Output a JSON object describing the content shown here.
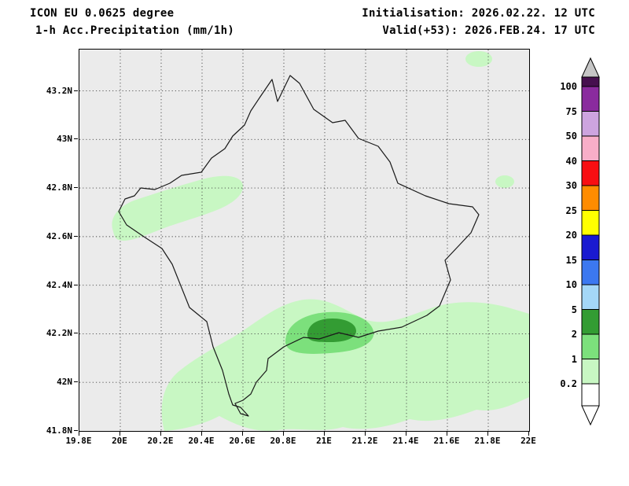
{
  "header": {
    "model": "ICON EU 0.0625 degree",
    "product": "1-h Acc.Precipitation (mm/1h)",
    "initialisation": "Initialisation: 2026.02.22. 12 UTC",
    "valid": "Valid(+53): 2026.FEB.24. 17 UTC"
  },
  "axes": {
    "xlim": [
      19.8,
      22.0
    ],
    "ylim": [
      41.8,
      43.37
    ],
    "x_ticks": [
      {
        "label": "19.8E",
        "value": 19.8
      },
      {
        "label": "20E",
        "value": 20.0
      },
      {
        "label": "20.2E",
        "value": 20.2
      },
      {
        "label": "20.4E",
        "value": 20.4
      },
      {
        "label": "20.6E",
        "value": 20.6
      },
      {
        "label": "20.8E",
        "value": 20.8
      },
      {
        "label": "21E",
        "value": 21.0
      },
      {
        "label": "21.2E",
        "value": 21.2
      },
      {
        "label": "21.4E",
        "value": 21.4
      },
      {
        "label": "21.6E",
        "value": 21.6
      },
      {
        "label": "21.8E",
        "value": 21.8
      },
      {
        "label": "22E",
        "value": 22.0
      }
    ],
    "y_ticks": [
      {
        "label": "43.2N",
        "value": 43.2
      },
      {
        "label": "43N",
        "value": 43.0
      },
      {
        "label": "42.8N",
        "value": 42.8
      },
      {
        "label": "42.6N",
        "value": 42.6
      },
      {
        "label": "42.4N",
        "value": 42.4
      },
      {
        "label": "42.2N",
        "value": 42.2
      },
      {
        "label": "42N",
        "value": 42.0
      },
      {
        "label": "41.8N",
        "value": 41.8
      }
    ]
  },
  "colorbar": {
    "boundary_labels": [
      "100",
      "75",
      "50",
      "40",
      "30",
      "25",
      "20",
      "15",
      "10",
      "5",
      "2",
      "1",
      "0.2"
    ],
    "segment_colors": [
      "#46104f",
      "#8a2b9e",
      "#cda4df",
      "#f8aec8",
      "#f80e12",
      "#ff8c00",
      "#ffff00",
      "#1a1ad0",
      "#3c78f0",
      "#a4d7f7",
      "#339c33",
      "#7ce07c",
      "#c8f7c3",
      "#ffffff"
    ],
    "over_arrow_color": "#c6c6c6",
    "under_arrow_color": "#ffffff"
  },
  "chart_data": {
    "type": "heatmap",
    "title": "1-h Acc.Precipitation (mm/1h)",
    "model": "ICON EU 0.0625 degree",
    "initialisation": "2026.02.22. 12 UTC",
    "valid": "(+53) 2026.FEB.24. 17 UTC",
    "units": "mm/1h",
    "region": "Kosovo",
    "xlim": [
      19.8,
      22.0
    ],
    "ylim": [
      41.8,
      43.37
    ],
    "grid": "dotted 0.2 degree graticule",
    "background_color": "#ebebeb",
    "contour_levels_mm": [
      0.2,
      1,
      2,
      5,
      10,
      15,
      20,
      25,
      30,
      40,
      50,
      75,
      100
    ],
    "palette": {
      "0.2-1": "#c8f7c3",
      "1-2": "#7ce07c",
      "2-5": "#339c33",
      "5-10": "#a4d7f7",
      "10-15": "#3c78f0",
      "15-20": "#1a1ad0",
      "20-25": "#ffff00",
      "25-30": "#ff8c00",
      "30-40": "#f80e12",
      "40-50": "#f8aec8",
      "50-75": "#cda4df",
      "75-100": "#8a2b9e",
      ">100": "#46104f"
    },
    "precip_areas": [
      {
        "name": "west-blob",
        "approx_lon": [
          20.1,
          20.6
        ],
        "approx_lat": [
          42.55,
          42.9
        ],
        "intensity_mm": "0.2-1"
      },
      {
        "name": "southern-band",
        "approx_lon": [
          20.2,
          22.0
        ],
        "approx_lat": [
          41.85,
          42.35
        ],
        "intensity_mm": "0.2-1"
      },
      {
        "name": "south-central-patch",
        "approx_lon": [
          20.85,
          21.25
        ],
        "approx_lat": [
          42.05,
          42.3
        ],
        "intensity_mm": "1-2"
      },
      {
        "name": "south-central-core",
        "approx_lon": [
          20.95,
          21.15
        ],
        "approx_lat": [
          42.1,
          42.25
        ],
        "intensity_mm": "2-5"
      },
      {
        "name": "northeast-edge-spot",
        "approx_lon": [
          21.7,
          21.85
        ],
        "approx_lat": [
          43.3,
          43.37
        ],
        "intensity_mm": "0.2-1"
      },
      {
        "name": "east-spot",
        "approx_lon": [
          21.8,
          21.9
        ],
        "approx_lat": [
          42.78,
          42.86
        ],
        "intensity_mm": "0.2-1"
      }
    ],
    "border_overlay": "Kosovo country border"
  }
}
